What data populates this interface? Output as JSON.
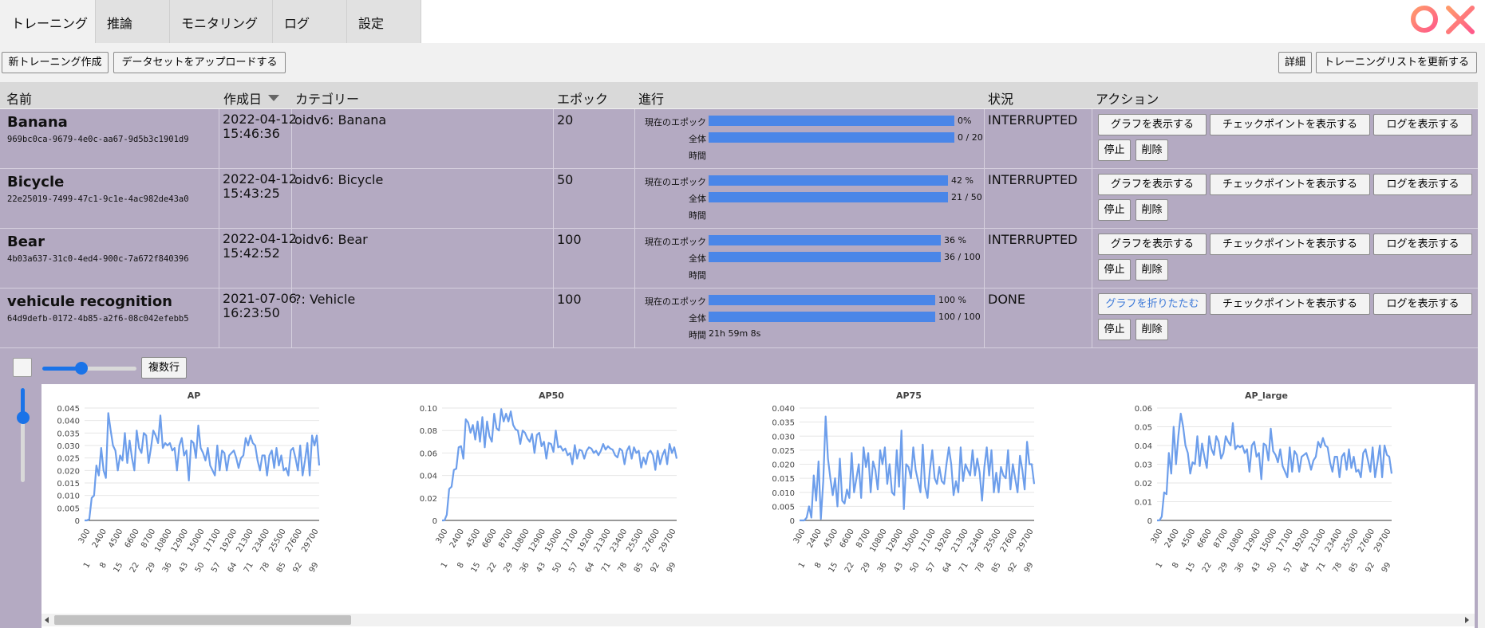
{
  "tabs": [
    {
      "label": "トレーニング",
      "active": true
    },
    {
      "label": "推論",
      "active": false
    },
    {
      "label": "モニタリング",
      "active": false
    },
    {
      "label": "ログ",
      "active": false
    },
    {
      "label": "設定",
      "active": false
    }
  ],
  "toolbar": {
    "new_training": "新トレーニング作成",
    "upload_dataset": "データセットをアップロードする",
    "details": "詳細",
    "refresh_list": "トレーニングリストを更新する"
  },
  "table": {
    "headers": {
      "name": "名前",
      "created": "作成日",
      "category": "カテゴリー",
      "epoch": "エポック",
      "progress": "進行",
      "status": "状況",
      "actions": "アクション"
    },
    "progress_labels": {
      "current": "現在のエポック",
      "total": "全体",
      "time": "時間"
    },
    "rows": [
      {
        "name": "Banana",
        "uuid": "969bc0ca-9679-4e0c-aa67-9d5b3c1901d9",
        "date": "2022-04-12",
        "time": "15:46:36",
        "category": "oidv6: Banana",
        "epochs": "20",
        "current_pct_text": "0%",
        "current_fraction": 0.0,
        "total_text": "0 / 20",
        "elapsed": "",
        "status": "INTERRUPTED",
        "graph_button": "グラフを表示する"
      },
      {
        "name": "Bicycle",
        "uuid": "22e25019-7499-47c1-9c1e-4ac982de43a0",
        "date": "2022-04-12",
        "time": "15:43:25",
        "category": "oidv6: Bicycle",
        "epochs": "50",
        "current_pct_text": "42 %",
        "current_fraction": 0.42,
        "total_text": "21 / 50",
        "elapsed": "",
        "status": "INTERRUPTED",
        "graph_button": "グラフを表示する"
      },
      {
        "name": "Bear",
        "uuid": "4b03a637-31c0-4ed4-900c-7a672f840396",
        "date": "2022-04-12",
        "time": "15:42:52",
        "category": "oidv6: Bear",
        "epochs": "100",
        "current_pct_text": "36 %",
        "current_fraction": 0.36,
        "total_text": "36 / 100",
        "elapsed": "",
        "status": "INTERRUPTED",
        "graph_button": "グラフを表示する"
      },
      {
        "name": "vehicule recognition",
        "uuid": "64d9defb-0172-4b85-a2f6-08c042efebb5",
        "date": "2021-07-06",
        "time": "16:23:50",
        "category": "?: Vehicle",
        "epochs": "100",
        "current_pct_text": "100 %",
        "current_fraction": 1.0,
        "total_text": "100 / 100",
        "elapsed": "21h 59m 8s",
        "status": "DONE",
        "graph_button": "グラフを折りたたむ"
      }
    ],
    "row_actions": {
      "checkpoints": "チェックポイントを表示する",
      "logs": "ログを表示する",
      "stop": "停止",
      "delete": "削除"
    }
  },
  "chart_controls": {
    "multi_row": "複数行"
  },
  "chart_data": [
    {
      "type": "line",
      "title": "AP",
      "ylim": [
        0,
        0.045
      ],
      "yticks": [
        "0",
        "0.005",
        "0.010",
        "0.015",
        "0.020",
        "0.025",
        "0.030",
        "0.035",
        "0.040",
        "0.045"
      ],
      "xticks_top": [
        "300",
        "2400",
        "4500",
        "6600",
        "8700",
        "10800",
        "12900",
        "15000",
        "17100",
        "19200",
        "21300",
        "23400",
        "25500",
        "27600",
        "29700"
      ],
      "xticks_bottom": [
        "1",
        "8",
        "15",
        "22",
        "29",
        "36",
        "43",
        "50",
        "57",
        "64",
        "71",
        "78",
        "85",
        "92",
        "99"
      ],
      "color": "#6d9eeb",
      "values": [
        0,
        0,
        0.0005,
        0.009,
        0.01,
        0.022,
        0.018,
        0.029,
        0.02,
        0.017,
        0.043,
        0.036,
        0.03,
        0.028,
        0.02,
        0.026,
        0.024,
        0.035,
        0.023,
        0.032,
        0.025,
        0.02,
        0.036,
        0.029,
        0.027,
        0.035,
        0.034,
        0.023,
        0.029,
        0.036,
        0.034,
        0.031,
        0.042,
        0.029,
        0.031,
        0.03,
        0.031,
        0.028,
        0.029,
        0.02,
        0.03,
        0.033,
        0.026,
        0.028,
        0.016,
        0.032,
        0.031,
        0.025,
        0.038,
        0.029,
        0.027,
        0.024,
        0.029,
        0.022,
        0.02,
        0.018,
        0.03,
        0.02,
        0.028,
        0.027,
        0.02,
        0.026,
        0.027,
        0.028,
        0.025,
        0.021,
        0.025,
        0.026,
        0.033,
        0.03,
        0.034,
        0.031,
        0.03,
        0.024,
        0.02,
        0.026,
        0.026,
        0.018,
        0.026,
        0.028,
        0.021,
        0.029,
        0.022,
        0.026,
        0.02,
        0.021,
        0.018,
        0.028,
        0.029,
        0.025,
        0.02,
        0.03,
        0.018,
        0.024,
        0.031,
        0.018,
        0.034,
        0.03,
        0.034,
        0.022
      ]
    },
    {
      "type": "line",
      "title": "AP50",
      "ylim": [
        0,
        0.1
      ],
      "yticks": [
        "0",
        "0.02",
        "0.04",
        "0.06",
        "0.08",
        "0.10"
      ],
      "xticks_top": [
        "300",
        "2400",
        "4500",
        "6600",
        "8700",
        "10800",
        "12900",
        "15000",
        "17100",
        "19200",
        "21300",
        "23400",
        "25500",
        "27600",
        "29700"
      ],
      "xticks_bottom": [
        "1",
        "8",
        "15",
        "22",
        "29",
        "36",
        "43",
        "50",
        "57",
        "64",
        "71",
        "78",
        "85",
        "92",
        "99"
      ],
      "color": "#6d9eeb",
      "values": [
        0,
        0,
        0.005,
        0.028,
        0.03,
        0.045,
        0.046,
        0.065,
        0.066,
        0.055,
        0.09,
        0.087,
        0.078,
        0.085,
        0.072,
        0.088,
        0.07,
        0.092,
        0.065,
        0.088,
        0.075,
        0.07,
        0.095,
        0.082,
        0.08,
        0.099,
        0.088,
        0.095,
        0.088,
        0.097,
        0.085,
        0.081,
        0.08,
        0.068,
        0.08,
        0.078,
        0.073,
        0.07,
        0.077,
        0.06,
        0.076,
        0.078,
        0.066,
        0.07,
        0.055,
        0.069,
        0.068,
        0.061,
        0.08,
        0.065,
        0.066,
        0.062,
        0.064,
        0.058,
        0.06,
        0.05,
        0.067,
        0.055,
        0.063,
        0.062,
        0.055,
        0.062,
        0.065,
        0.064,
        0.06,
        0.062,
        0.058,
        0.062,
        0.068,
        0.063,
        0.066,
        0.064,
        0.063,
        0.058,
        0.056,
        0.064,
        0.062,
        0.05,
        0.062,
        0.066,
        0.055,
        0.065,
        0.06,
        0.062,
        0.047,
        0.056,
        0.05,
        0.06,
        0.062,
        0.058,
        0.045,
        0.062,
        0.05,
        0.058,
        0.063,
        0.05,
        0.068,
        0.06,
        0.065,
        0.055
      ]
    },
    {
      "type": "line",
      "title": "AP75",
      "ylim": [
        0,
        0.04
      ],
      "yticks": [
        "0",
        "0.005",
        "0.010",
        "0.015",
        "0.020",
        "0.025",
        "0.030",
        "0.035",
        "0.040"
      ],
      "xticks_top": [
        "300",
        "2400",
        "4500",
        "6600",
        "8700",
        "10800",
        "12900",
        "15000",
        "17100",
        "19200",
        "21300",
        "23400",
        "25500",
        "27600",
        "29700"
      ],
      "xticks_bottom": [
        "1",
        "8",
        "15",
        "22",
        "29",
        "36",
        "43",
        "50",
        "57",
        "64",
        "71",
        "78",
        "85",
        "92",
        "99"
      ],
      "color": "#6d9eeb",
      "values": [
        0,
        0,
        0,
        0.001,
        0.005,
        0.001,
        0.016,
        0.007,
        0.021,
        0.0005,
        0.014,
        0.037,
        0.022,
        0.015,
        0.009,
        0.015,
        0.005,
        0.022,
        0.007,
        0.006,
        0.011,
        0.008,
        0.024,
        0.01,
        0.015,
        0.02,
        0.008,
        0.026,
        0.019,
        0.024,
        0.01,
        0.021,
        0.018,
        0.011,
        0.025,
        0.02,
        0.026,
        0.013,
        0.02,
        0.01,
        0.009,
        0.025,
        0.012,
        0.032,
        0.004,
        0.02,
        0.019,
        0.015,
        0.026,
        0.018,
        0.014,
        0.01,
        0.027,
        0.012,
        0.008,
        0.018,
        0.025,
        0.015,
        0.013,
        0.019,
        0.014,
        0.013,
        0.02,
        0.026,
        0.02,
        0.009,
        0.014,
        0.01,
        0.026,
        0.014,
        0.02,
        0.018,
        0.016,
        0.025,
        0.016,
        0.022,
        0.017,
        0.007,
        0.019,
        0.026,
        0.016,
        0.025,
        0.01,
        0.017,
        0.01,
        0.019,
        0.016,
        0.015,
        0.025,
        0.011,
        0.02,
        0.015,
        0.01,
        0.023,
        0.018,
        0.011,
        0.028,
        0.02,
        0.02,
        0.013
      ]
    },
    {
      "type": "line",
      "title": "AP_large",
      "ylim": [
        0,
        0.06
      ],
      "yticks": [
        "0",
        "0.01",
        "0.02",
        "0.03",
        "0.04",
        "0.05",
        "0.06"
      ],
      "xticks_top": [
        "300",
        "2400",
        "4500",
        "6600",
        "8700",
        "10800",
        "12900",
        "15000",
        "17100",
        "19200",
        "21300",
        "23400",
        "25500",
        "27600",
        "29700"
      ],
      "xticks_bottom": [
        "1",
        "8",
        "15",
        "22",
        "29",
        "36",
        "43",
        "50",
        "57",
        "64",
        "71",
        "78",
        "85",
        "92",
        "99"
      ],
      "color": "#6d9eeb",
      "values": [
        0,
        0,
        0.002,
        0.015,
        0.014,
        0.036,
        0.025,
        0.05,
        0.03,
        0.045,
        0.057,
        0.05,
        0.04,
        0.036,
        0.025,
        0.031,
        0.03,
        0.045,
        0.029,
        0.041,
        0.034,
        0.028,
        0.045,
        0.038,
        0.035,
        0.045,
        0.042,
        0.033,
        0.036,
        0.045,
        0.042,
        0.04,
        0.052,
        0.038,
        0.04,
        0.039,
        0.04,
        0.036,
        0.038,
        0.026,
        0.04,
        0.042,
        0.034,
        0.036,
        0.022,
        0.041,
        0.04,
        0.032,
        0.049,
        0.037,
        0.035,
        0.031,
        0.038,
        0.029,
        0.026,
        0.023,
        0.039,
        0.026,
        0.037,
        0.035,
        0.026,
        0.034,
        0.035,
        0.036,
        0.032,
        0.027,
        0.032,
        0.034,
        0.042,
        0.039,
        0.044,
        0.04,
        0.039,
        0.031,
        0.026,
        0.034,
        0.034,
        0.023,
        0.034,
        0.036,
        0.027,
        0.038,
        0.028,
        0.034,
        0.026,
        0.027,
        0.023,
        0.036,
        0.038,
        0.032,
        0.026,
        0.039,
        0.023,
        0.031,
        0.04,
        0.023,
        0.04,
        0.035,
        0.034,
        0.025
      ]
    }
  ]
}
